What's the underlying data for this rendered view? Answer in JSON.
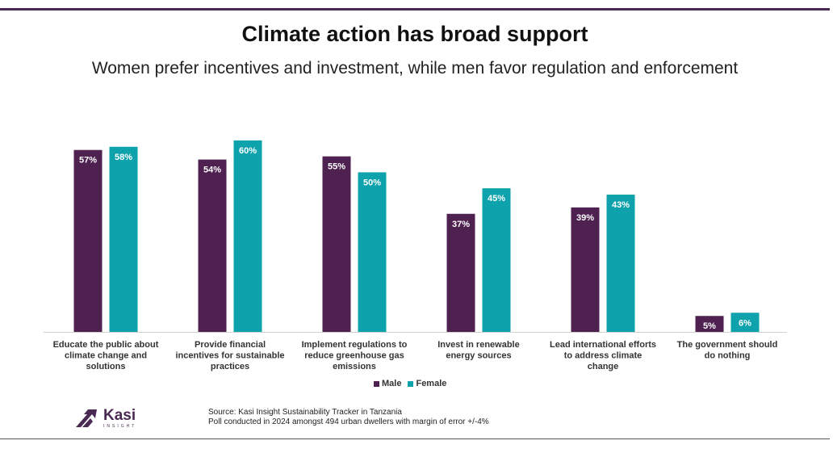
{
  "header": {
    "title": "Climate action has broad support",
    "subtitle": "Women prefer incentives and investment, while men favor regulation and enforcement"
  },
  "legend": {
    "male": "Male",
    "female": "Female"
  },
  "colors": {
    "male": "#4e2150",
    "female": "#0ea2ad",
    "accent": "#4a2a52"
  },
  "footer": {
    "logo_name": "Kasi",
    "logo_sub": "INSIGHT",
    "source_line1": "Source: Kasi Insight Sustainability Tracker in Tanzania",
    "source_line2": "Poll conducted in 2024 amongst 494 urban dwellers with margin of error +/-4%"
  },
  "chart_data": {
    "type": "bar",
    "categories": [
      [
        "Educate the public about",
        "climate change and",
        "solutions"
      ],
      [
        "Provide financial",
        "incentives for sustainable",
        "practices"
      ],
      [
        "Implement regulations to",
        "reduce greenhouse gas",
        "emissions"
      ],
      [
        "Invest in renewable",
        "energy sources"
      ],
      [
        "Lead international efforts",
        "to address climate",
        "change"
      ],
      [
        "The government should",
        "do nothing"
      ]
    ],
    "series": [
      {
        "name": "Male",
        "values": [
          57,
          54,
          55,
          37,
          39,
          5
        ],
        "labels": [
          "57%",
          "54%",
          "55%",
          "37%",
          "39%",
          "5%"
        ]
      },
      {
        "name": "Female",
        "values": [
          58,
          60,
          50,
          45,
          43,
          6
        ],
        "labels": [
          "58%",
          "60%",
          "50%",
          "45%",
          "43%",
          "6%"
        ]
      }
    ],
    "ylim": [
      0,
      63
    ],
    "grid": false,
    "legend_position": "bottom"
  }
}
